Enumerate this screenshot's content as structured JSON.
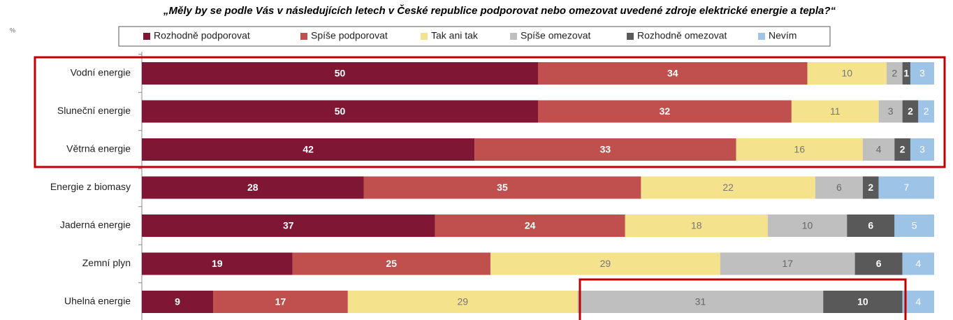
{
  "chart_data": {
    "type": "stacked_bar_horizontal",
    "title": "„Měly by se podle Vás v následujících letech v České republice podporovat nebo omezovat uvedené zdroje elektrické energie a tepla?“",
    "axis_label": "%",
    "categories": [
      "Vodní energie",
      "Sluneční energie",
      "Větrná energie",
      "Energie z biomasy",
      "Jaderná energie",
      "Zemní plyn",
      "Uhelná energie"
    ],
    "xlim": [
      0,
      100
    ],
    "legend": "top",
    "series": [
      {
        "name": "Rozhodně podporovat",
        "color": "#7f1734",
        "values": [
          50,
          50,
          42,
          28,
          37,
          19,
          9
        ]
      },
      {
        "name": "Spíše podporovat",
        "color": "#c0504d",
        "values": [
          34,
          32,
          33,
          35,
          24,
          25,
          17
        ]
      },
      {
        "name": "Tak ani tak",
        "color": "#f5e28c",
        "values": [
          10,
          11,
          16,
          22,
          18,
          29,
          29
        ]
      },
      {
        "name": "Spíše omezovat",
        "color": "#bfbfbf",
        "values": [
          2,
          3,
          4,
          6,
          10,
          17,
          31
        ]
      },
      {
        "name": "Rozhodně omezovat",
        "color": "#595959",
        "values": [
          1,
          2,
          2,
          2,
          6,
          6,
          10
        ]
      },
      {
        "name": "Nevím",
        "color": "#9dc3e6",
        "values": [
          3,
          2,
          3,
          7,
          5,
          4,
          4
        ]
      }
    ]
  }
}
